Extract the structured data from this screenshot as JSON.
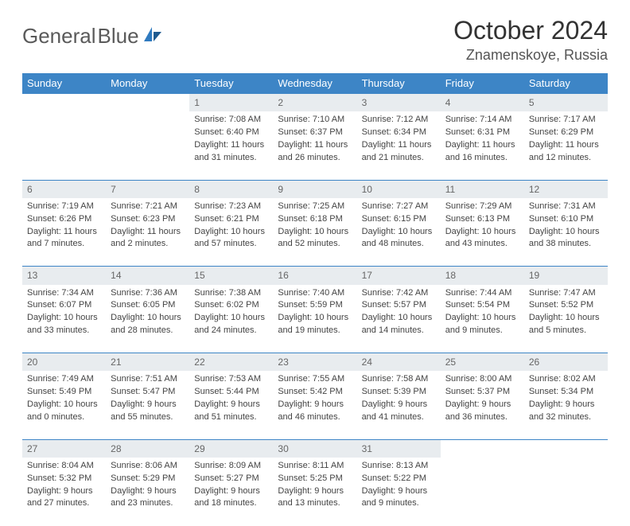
{
  "logo": {
    "text_gray": "General",
    "text_blue": "Blue"
  },
  "title": "October 2024",
  "location": "Znamenskoye, Russia",
  "colors": {
    "header_bg": "#3d85c6",
    "header_fg": "#ffffff",
    "daynum_bg": "#e8ecef",
    "daynum_fg": "#666666",
    "row_border": "#3d85c6",
    "body_text": "#444444",
    "logo_gray": "#5a5a5a",
    "logo_blue": "#2f7abf"
  },
  "day_headers": [
    "Sunday",
    "Monday",
    "Tuesday",
    "Wednesday",
    "Thursday",
    "Friday",
    "Saturday"
  ],
  "weeks": [
    [
      {
        "n": "",
        "sr": "",
        "ss": "",
        "dl1": "",
        "dl2": ""
      },
      {
        "n": "",
        "sr": "",
        "ss": "",
        "dl1": "",
        "dl2": ""
      },
      {
        "n": "1",
        "sr": "Sunrise: 7:08 AM",
        "ss": "Sunset: 6:40 PM",
        "dl1": "Daylight: 11 hours",
        "dl2": "and 31 minutes."
      },
      {
        "n": "2",
        "sr": "Sunrise: 7:10 AM",
        "ss": "Sunset: 6:37 PM",
        "dl1": "Daylight: 11 hours",
        "dl2": "and 26 minutes."
      },
      {
        "n": "3",
        "sr": "Sunrise: 7:12 AM",
        "ss": "Sunset: 6:34 PM",
        "dl1": "Daylight: 11 hours",
        "dl2": "and 21 minutes."
      },
      {
        "n": "4",
        "sr": "Sunrise: 7:14 AM",
        "ss": "Sunset: 6:31 PM",
        "dl1": "Daylight: 11 hours",
        "dl2": "and 16 minutes."
      },
      {
        "n": "5",
        "sr": "Sunrise: 7:17 AM",
        "ss": "Sunset: 6:29 PM",
        "dl1": "Daylight: 11 hours",
        "dl2": "and 12 minutes."
      }
    ],
    [
      {
        "n": "6",
        "sr": "Sunrise: 7:19 AM",
        "ss": "Sunset: 6:26 PM",
        "dl1": "Daylight: 11 hours",
        "dl2": "and 7 minutes."
      },
      {
        "n": "7",
        "sr": "Sunrise: 7:21 AM",
        "ss": "Sunset: 6:23 PM",
        "dl1": "Daylight: 11 hours",
        "dl2": "and 2 minutes."
      },
      {
        "n": "8",
        "sr": "Sunrise: 7:23 AM",
        "ss": "Sunset: 6:21 PM",
        "dl1": "Daylight: 10 hours",
        "dl2": "and 57 minutes."
      },
      {
        "n": "9",
        "sr": "Sunrise: 7:25 AM",
        "ss": "Sunset: 6:18 PM",
        "dl1": "Daylight: 10 hours",
        "dl2": "and 52 minutes."
      },
      {
        "n": "10",
        "sr": "Sunrise: 7:27 AM",
        "ss": "Sunset: 6:15 PM",
        "dl1": "Daylight: 10 hours",
        "dl2": "and 48 minutes."
      },
      {
        "n": "11",
        "sr": "Sunrise: 7:29 AM",
        "ss": "Sunset: 6:13 PM",
        "dl1": "Daylight: 10 hours",
        "dl2": "and 43 minutes."
      },
      {
        "n": "12",
        "sr": "Sunrise: 7:31 AM",
        "ss": "Sunset: 6:10 PM",
        "dl1": "Daylight: 10 hours",
        "dl2": "and 38 minutes."
      }
    ],
    [
      {
        "n": "13",
        "sr": "Sunrise: 7:34 AM",
        "ss": "Sunset: 6:07 PM",
        "dl1": "Daylight: 10 hours",
        "dl2": "and 33 minutes."
      },
      {
        "n": "14",
        "sr": "Sunrise: 7:36 AM",
        "ss": "Sunset: 6:05 PM",
        "dl1": "Daylight: 10 hours",
        "dl2": "and 28 minutes."
      },
      {
        "n": "15",
        "sr": "Sunrise: 7:38 AM",
        "ss": "Sunset: 6:02 PM",
        "dl1": "Daylight: 10 hours",
        "dl2": "and 24 minutes."
      },
      {
        "n": "16",
        "sr": "Sunrise: 7:40 AM",
        "ss": "Sunset: 5:59 PM",
        "dl1": "Daylight: 10 hours",
        "dl2": "and 19 minutes."
      },
      {
        "n": "17",
        "sr": "Sunrise: 7:42 AM",
        "ss": "Sunset: 5:57 PM",
        "dl1": "Daylight: 10 hours",
        "dl2": "and 14 minutes."
      },
      {
        "n": "18",
        "sr": "Sunrise: 7:44 AM",
        "ss": "Sunset: 5:54 PM",
        "dl1": "Daylight: 10 hours",
        "dl2": "and 9 minutes."
      },
      {
        "n": "19",
        "sr": "Sunrise: 7:47 AM",
        "ss": "Sunset: 5:52 PM",
        "dl1": "Daylight: 10 hours",
        "dl2": "and 5 minutes."
      }
    ],
    [
      {
        "n": "20",
        "sr": "Sunrise: 7:49 AM",
        "ss": "Sunset: 5:49 PM",
        "dl1": "Daylight: 10 hours",
        "dl2": "and 0 minutes."
      },
      {
        "n": "21",
        "sr": "Sunrise: 7:51 AM",
        "ss": "Sunset: 5:47 PM",
        "dl1": "Daylight: 9 hours",
        "dl2": "and 55 minutes."
      },
      {
        "n": "22",
        "sr": "Sunrise: 7:53 AM",
        "ss": "Sunset: 5:44 PM",
        "dl1": "Daylight: 9 hours",
        "dl2": "and 51 minutes."
      },
      {
        "n": "23",
        "sr": "Sunrise: 7:55 AM",
        "ss": "Sunset: 5:42 PM",
        "dl1": "Daylight: 9 hours",
        "dl2": "and 46 minutes."
      },
      {
        "n": "24",
        "sr": "Sunrise: 7:58 AM",
        "ss": "Sunset: 5:39 PM",
        "dl1": "Daylight: 9 hours",
        "dl2": "and 41 minutes."
      },
      {
        "n": "25",
        "sr": "Sunrise: 8:00 AM",
        "ss": "Sunset: 5:37 PM",
        "dl1": "Daylight: 9 hours",
        "dl2": "and 36 minutes."
      },
      {
        "n": "26",
        "sr": "Sunrise: 8:02 AM",
        "ss": "Sunset: 5:34 PM",
        "dl1": "Daylight: 9 hours",
        "dl2": "and 32 minutes."
      }
    ],
    [
      {
        "n": "27",
        "sr": "Sunrise: 8:04 AM",
        "ss": "Sunset: 5:32 PM",
        "dl1": "Daylight: 9 hours",
        "dl2": "and 27 minutes."
      },
      {
        "n": "28",
        "sr": "Sunrise: 8:06 AM",
        "ss": "Sunset: 5:29 PM",
        "dl1": "Daylight: 9 hours",
        "dl2": "and 23 minutes."
      },
      {
        "n": "29",
        "sr": "Sunrise: 8:09 AM",
        "ss": "Sunset: 5:27 PM",
        "dl1": "Daylight: 9 hours",
        "dl2": "and 18 minutes."
      },
      {
        "n": "30",
        "sr": "Sunrise: 8:11 AM",
        "ss": "Sunset: 5:25 PM",
        "dl1": "Daylight: 9 hours",
        "dl2": "and 13 minutes."
      },
      {
        "n": "31",
        "sr": "Sunrise: 8:13 AM",
        "ss": "Sunset: 5:22 PM",
        "dl1": "Daylight: 9 hours",
        "dl2": "and 9 minutes."
      },
      {
        "n": "",
        "sr": "",
        "ss": "",
        "dl1": "",
        "dl2": ""
      },
      {
        "n": "",
        "sr": "",
        "ss": "",
        "dl1": "",
        "dl2": ""
      }
    ]
  ]
}
